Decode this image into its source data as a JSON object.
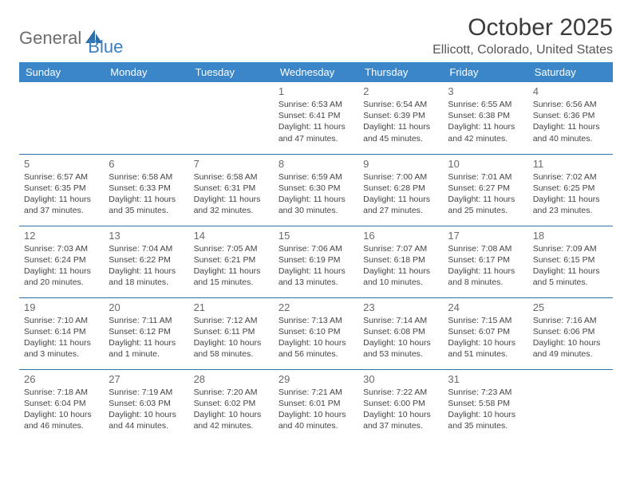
{
  "logo": {
    "text1": "General",
    "text2": "Blue"
  },
  "title": "October 2025",
  "location": "Ellicott, Colorado, United States",
  "accent_color": "#3a86c8",
  "border_color": "#2f6fa8",
  "weekdays": [
    "Sunday",
    "Monday",
    "Tuesday",
    "Wednesday",
    "Thursday",
    "Friday",
    "Saturday"
  ],
  "weeks": [
    [
      null,
      null,
      null,
      {
        "d": "1",
        "sr": "Sunrise: 6:53 AM",
        "ss": "Sunset: 6:41 PM",
        "dl1": "Daylight: 11 hours",
        "dl2": "and 47 minutes."
      },
      {
        "d": "2",
        "sr": "Sunrise: 6:54 AM",
        "ss": "Sunset: 6:39 PM",
        "dl1": "Daylight: 11 hours",
        "dl2": "and 45 minutes."
      },
      {
        "d": "3",
        "sr": "Sunrise: 6:55 AM",
        "ss": "Sunset: 6:38 PM",
        "dl1": "Daylight: 11 hours",
        "dl2": "and 42 minutes."
      },
      {
        "d": "4",
        "sr": "Sunrise: 6:56 AM",
        "ss": "Sunset: 6:36 PM",
        "dl1": "Daylight: 11 hours",
        "dl2": "and 40 minutes."
      }
    ],
    [
      {
        "d": "5",
        "sr": "Sunrise: 6:57 AM",
        "ss": "Sunset: 6:35 PM",
        "dl1": "Daylight: 11 hours",
        "dl2": "and 37 minutes."
      },
      {
        "d": "6",
        "sr": "Sunrise: 6:58 AM",
        "ss": "Sunset: 6:33 PM",
        "dl1": "Daylight: 11 hours",
        "dl2": "and 35 minutes."
      },
      {
        "d": "7",
        "sr": "Sunrise: 6:58 AM",
        "ss": "Sunset: 6:31 PM",
        "dl1": "Daylight: 11 hours",
        "dl2": "and 32 minutes."
      },
      {
        "d": "8",
        "sr": "Sunrise: 6:59 AM",
        "ss": "Sunset: 6:30 PM",
        "dl1": "Daylight: 11 hours",
        "dl2": "and 30 minutes."
      },
      {
        "d": "9",
        "sr": "Sunrise: 7:00 AM",
        "ss": "Sunset: 6:28 PM",
        "dl1": "Daylight: 11 hours",
        "dl2": "and 27 minutes."
      },
      {
        "d": "10",
        "sr": "Sunrise: 7:01 AM",
        "ss": "Sunset: 6:27 PM",
        "dl1": "Daylight: 11 hours",
        "dl2": "and 25 minutes."
      },
      {
        "d": "11",
        "sr": "Sunrise: 7:02 AM",
        "ss": "Sunset: 6:25 PM",
        "dl1": "Daylight: 11 hours",
        "dl2": "and 23 minutes."
      }
    ],
    [
      {
        "d": "12",
        "sr": "Sunrise: 7:03 AM",
        "ss": "Sunset: 6:24 PM",
        "dl1": "Daylight: 11 hours",
        "dl2": "and 20 minutes."
      },
      {
        "d": "13",
        "sr": "Sunrise: 7:04 AM",
        "ss": "Sunset: 6:22 PM",
        "dl1": "Daylight: 11 hours",
        "dl2": "and 18 minutes."
      },
      {
        "d": "14",
        "sr": "Sunrise: 7:05 AM",
        "ss": "Sunset: 6:21 PM",
        "dl1": "Daylight: 11 hours",
        "dl2": "and 15 minutes."
      },
      {
        "d": "15",
        "sr": "Sunrise: 7:06 AM",
        "ss": "Sunset: 6:19 PM",
        "dl1": "Daylight: 11 hours",
        "dl2": "and 13 minutes."
      },
      {
        "d": "16",
        "sr": "Sunrise: 7:07 AM",
        "ss": "Sunset: 6:18 PM",
        "dl1": "Daylight: 11 hours",
        "dl2": "and 10 minutes."
      },
      {
        "d": "17",
        "sr": "Sunrise: 7:08 AM",
        "ss": "Sunset: 6:17 PM",
        "dl1": "Daylight: 11 hours",
        "dl2": "and 8 minutes."
      },
      {
        "d": "18",
        "sr": "Sunrise: 7:09 AM",
        "ss": "Sunset: 6:15 PM",
        "dl1": "Daylight: 11 hours",
        "dl2": "and 5 minutes."
      }
    ],
    [
      {
        "d": "19",
        "sr": "Sunrise: 7:10 AM",
        "ss": "Sunset: 6:14 PM",
        "dl1": "Daylight: 11 hours",
        "dl2": "and 3 minutes."
      },
      {
        "d": "20",
        "sr": "Sunrise: 7:11 AM",
        "ss": "Sunset: 6:12 PM",
        "dl1": "Daylight: 11 hours",
        "dl2": "and 1 minute."
      },
      {
        "d": "21",
        "sr": "Sunrise: 7:12 AM",
        "ss": "Sunset: 6:11 PM",
        "dl1": "Daylight: 10 hours",
        "dl2": "and 58 minutes."
      },
      {
        "d": "22",
        "sr": "Sunrise: 7:13 AM",
        "ss": "Sunset: 6:10 PM",
        "dl1": "Daylight: 10 hours",
        "dl2": "and 56 minutes."
      },
      {
        "d": "23",
        "sr": "Sunrise: 7:14 AM",
        "ss": "Sunset: 6:08 PM",
        "dl1": "Daylight: 10 hours",
        "dl2": "and 53 minutes."
      },
      {
        "d": "24",
        "sr": "Sunrise: 7:15 AM",
        "ss": "Sunset: 6:07 PM",
        "dl1": "Daylight: 10 hours",
        "dl2": "and 51 minutes."
      },
      {
        "d": "25",
        "sr": "Sunrise: 7:16 AM",
        "ss": "Sunset: 6:06 PM",
        "dl1": "Daylight: 10 hours",
        "dl2": "and 49 minutes."
      }
    ],
    [
      {
        "d": "26",
        "sr": "Sunrise: 7:18 AM",
        "ss": "Sunset: 6:04 PM",
        "dl1": "Daylight: 10 hours",
        "dl2": "and 46 minutes."
      },
      {
        "d": "27",
        "sr": "Sunrise: 7:19 AM",
        "ss": "Sunset: 6:03 PM",
        "dl1": "Daylight: 10 hours",
        "dl2": "and 44 minutes."
      },
      {
        "d": "28",
        "sr": "Sunrise: 7:20 AM",
        "ss": "Sunset: 6:02 PM",
        "dl1": "Daylight: 10 hours",
        "dl2": "and 42 minutes."
      },
      {
        "d": "29",
        "sr": "Sunrise: 7:21 AM",
        "ss": "Sunset: 6:01 PM",
        "dl1": "Daylight: 10 hours",
        "dl2": "and 40 minutes."
      },
      {
        "d": "30",
        "sr": "Sunrise: 7:22 AM",
        "ss": "Sunset: 6:00 PM",
        "dl1": "Daylight: 10 hours",
        "dl2": "and 37 minutes."
      },
      {
        "d": "31",
        "sr": "Sunrise: 7:23 AM",
        "ss": "Sunset: 5:58 PM",
        "dl1": "Daylight: 10 hours",
        "dl2": "and 35 minutes."
      },
      null
    ]
  ]
}
